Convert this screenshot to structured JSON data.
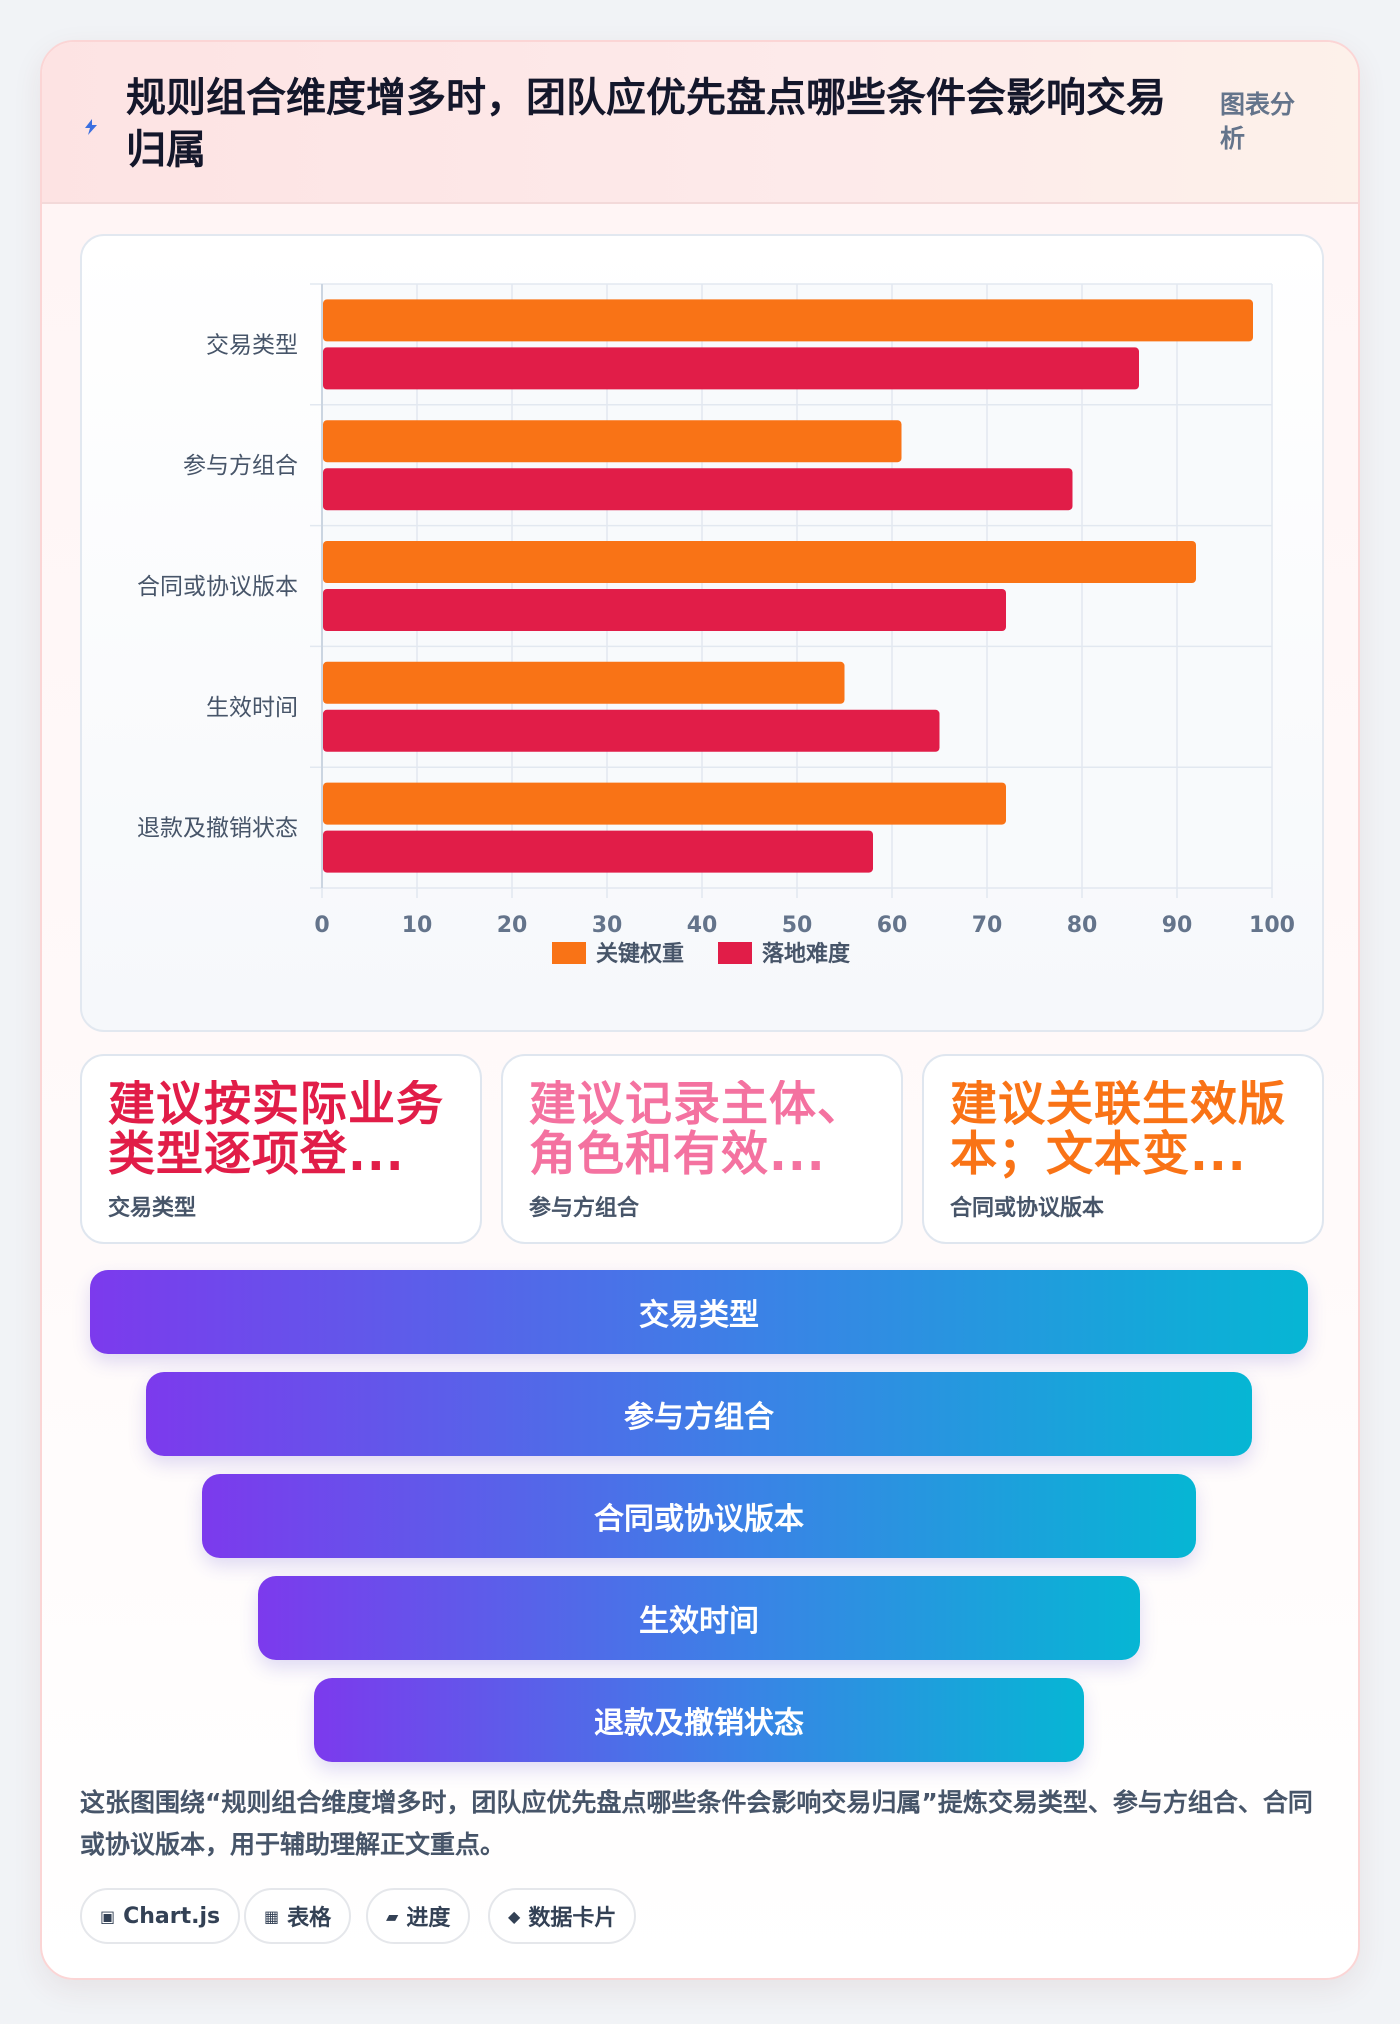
{
  "header": {
    "title": "规则组合维度增多时，团队应优先盘点哪些条件会影响交易归属",
    "tag": "图表分析"
  },
  "chart_data": {
    "type": "bar",
    "orientation": "horizontal",
    "categories": [
      "交易类型",
      "参与方组合",
      "合同或协议版本",
      "生效时间",
      "退款及撤销状态"
    ],
    "series": [
      {
        "name": "关键权重",
        "color": "#f97316",
        "values": [
          98,
          61,
          92,
          55,
          72
        ]
      },
      {
        "name": "落地难度",
        "color": "#e11d48",
        "values": [
          86,
          79,
          72,
          65,
          58
        ]
      }
    ],
    "xlim": [
      0,
      100
    ],
    "xticks": [
      "0",
      "10",
      "20",
      "30",
      "40",
      "50",
      "60",
      "70",
      "80",
      "90",
      "100"
    ],
    "grid": true,
    "legend_position": "bottom"
  },
  "kpis": [
    {
      "value": "建议按实际业务类型逐项登...",
      "label": "交易类型",
      "color": "#e11d48"
    },
    {
      "value": "建议记录主体、角色和有效...",
      "label": "参与方组合",
      "color": "#f472a0"
    },
    {
      "value": "建议关联生效版本；文本变...",
      "label": "合同或协议版本",
      "color": "#f97316"
    }
  ],
  "funnel": [
    "交易类型",
    "参与方组合",
    "合同或协议版本",
    "生效时间",
    "退款及撤销状态"
  ],
  "summary": "这张图围绕“规则组合维度增多时，团队应优先盘点哪些条件会影响交易归属”提炼交易类型、参与方组合、合同或协议版本，用于辅助理解正文重点。",
  "chips": [
    {
      "icon": "▣",
      "label": "Chart.js",
      "icon_name": "chart-icon"
    },
    {
      "icon": "▦",
      "label": "表格",
      "icon_name": "table-icon"
    },
    {
      "icon": "▰",
      "label": "进度",
      "icon_name": "progress-icon"
    },
    {
      "icon": "◆",
      "label": "数据卡片",
      "icon_name": "card-icon"
    }
  ]
}
